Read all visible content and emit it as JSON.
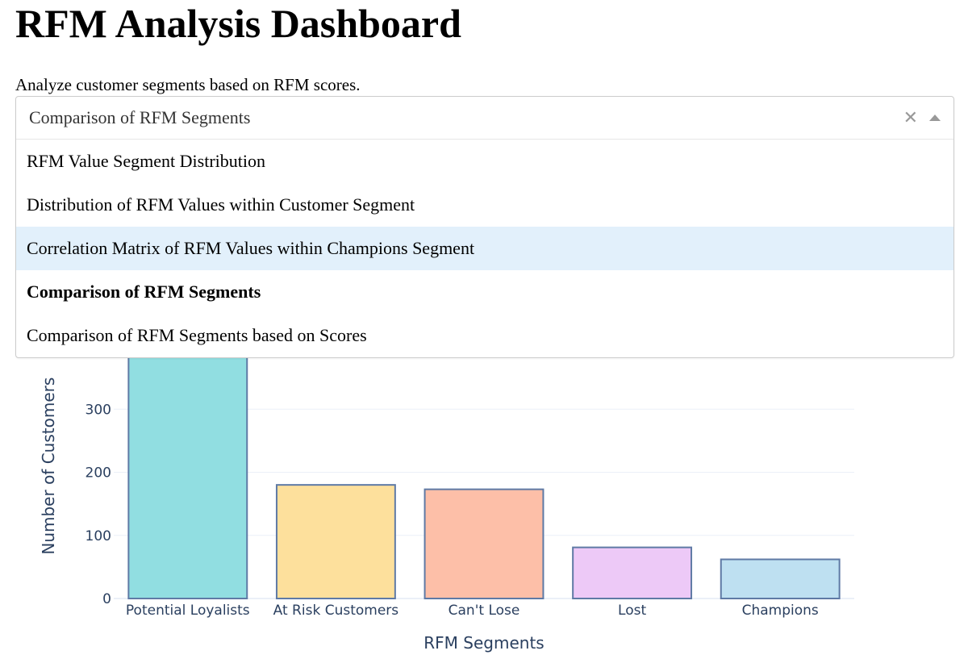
{
  "header": {
    "title": "RFM Analysis Dashboard",
    "subtitle": "Analyze customer segments based on RFM scores."
  },
  "dropdown": {
    "value": "Comparison of RFM Segments",
    "clear_icon": "close-icon",
    "toggle_icon": "chevron-up-icon",
    "options": [
      {
        "label": "RFM Value Segment Distribution",
        "focused": false,
        "selected": false
      },
      {
        "label": "Distribution of RFM Values within Customer Segment",
        "focused": false,
        "selected": false
      },
      {
        "label": "Correlation Matrix of RFM Values within Champions Segment",
        "focused": true,
        "selected": false
      },
      {
        "label": "Comparison of RFM Segments",
        "focused": false,
        "selected": true
      },
      {
        "label": "Comparison of RFM Segments based on Scores",
        "focused": false,
        "selected": false
      }
    ]
  },
  "chart_data": {
    "type": "bar",
    "title": "",
    "xlabel": "RFM Segments",
    "ylabel": "Number of Customers",
    "categories": [
      "Potential Loyalists",
      "At Risk Customers",
      "Can't Lose",
      "Lost",
      "Champions"
    ],
    "values": [
      400,
      180,
      173,
      81,
      62
    ],
    "yticks": [
      0,
      100,
      200,
      300
    ],
    "ylim": [
      0,
      420
    ],
    "grid": true,
    "colors": [
      "#91dee1",
      "#fde09c",
      "#fdbfa8",
      "#edc9f7",
      "#bee0f1"
    ],
    "bar_outline": "#5f7aa5"
  }
}
